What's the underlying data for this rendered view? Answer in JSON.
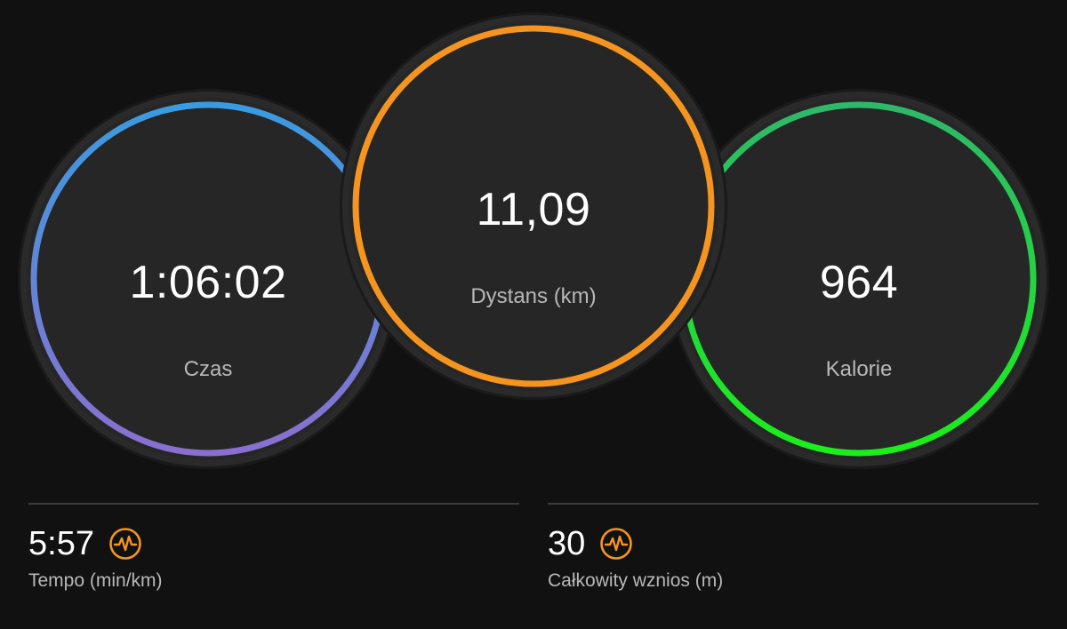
{
  "circles": {
    "time": {
      "value": "1:06:02",
      "label": "Czas",
      "colors": [
        "#3a9be0",
        "#8a6fd0"
      ]
    },
    "distance": {
      "value": "11,09",
      "label": "Dystans (km)",
      "colors": [
        "#f5951f",
        "#f5951f"
      ]
    },
    "calories": {
      "value": "964",
      "label": "Kalorie",
      "colors": [
        "#2eb86a",
        "#1aef1a"
      ]
    }
  },
  "stats": {
    "pace": {
      "value": "5:57",
      "label": "Tempo (min/km)",
      "icon": "heart-rate-icon"
    },
    "ascent": {
      "value": "30",
      "label": "Całkowity wznios (m)",
      "icon": "heart-rate-icon"
    }
  },
  "colors": {
    "background": "#111111",
    "circle_fill": "#262626",
    "icon_accent": "#f5951f",
    "label_text": "#b8b8b8"
  }
}
